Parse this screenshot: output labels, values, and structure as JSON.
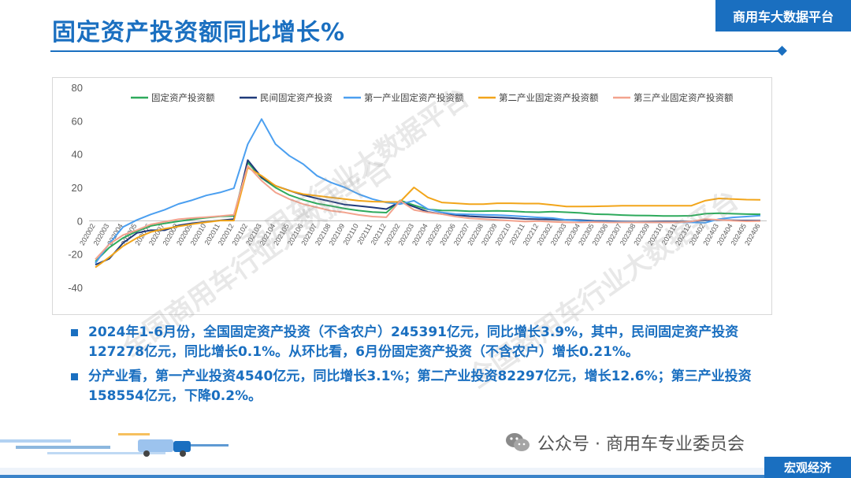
{
  "header": {
    "title": "固定资产投资额同比增长%",
    "badge": "商用车大数据平台"
  },
  "bullets": [
    "2024年1-6月份，全国固定资产投资（不含农户）245391亿元，同比增长3.9%，其中，民间固定资产投资127278亿元，同比增长0.1%。从环比看，6月份固定资产投资（不含农户）增长0.21%。",
    "分产业看，第一产业投资4540亿元，同比增长3.1%；第二产业投资82297亿元，增长12.6%；第三产业投资158554亿元，下降0.2%。"
  ],
  "footer": {
    "wechat_label": "公众号 · 商用车专业委员会",
    "section": "宏观经济"
  },
  "watermarks": [
    "商用车行业大数据平台",
    "全国商用车行业大数据平台",
    "全国商用车行业大数据平台"
  ],
  "colors": {
    "brand": "#1a6fc0"
  },
  "chart_data": {
    "type": "line",
    "title": "",
    "xlabel": "",
    "ylabel": "",
    "ylim": [
      -40,
      80
    ],
    "yticks": [
      -40,
      -20,
      0,
      20,
      40,
      60,
      80
    ],
    "grid": false,
    "legend": "top",
    "x": [
      "202002",
      "202003",
      "202004",
      "202005",
      "202006",
      "202007",
      "202008",
      "202009",
      "202010",
      "202011",
      "202012",
      "202102",
      "202103",
      "202104",
      "202105",
      "202106",
      "202107",
      "202108",
      "202109",
      "202110",
      "202111",
      "202112",
      "202202",
      "202203",
      "202204",
      "202205",
      "202206",
      "202207",
      "202208",
      "202209",
      "202210",
      "202211",
      "202212",
      "202302",
      "202303",
      "202304",
      "202305",
      "202306",
      "202307",
      "202308",
      "202309",
      "202310",
      "202311",
      "202312",
      "202402",
      "202403",
      "202404",
      "202405",
      "202406"
    ],
    "series": [
      {
        "name": "固定资产投资额",
        "color": "#2eaa5c",
        "values": [
          -24.5,
          -16.1,
          -10.3,
          -6.3,
          -3.1,
          -1.6,
          -0.3,
          0.8,
          1.8,
          2.6,
          2.9,
          35.0,
          25.6,
          19.9,
          15.4,
          12.6,
          10.3,
          8.9,
          7.3,
          6.1,
          5.2,
          4.9,
          12.2,
          9.3,
          6.8,
          6.2,
          6.1,
          5.7,
          5.8,
          5.9,
          5.8,
          5.3,
          5.1,
          5.5,
          5.1,
          4.7,
          4.0,
          3.8,
          3.4,
          3.2,
          3.1,
          2.9,
          2.9,
          3.0,
          4.2,
          4.5,
          4.2,
          4.0,
          3.9
        ]
      },
      {
        "name": "民间固定资产投资",
        "color": "#1f3a7a",
        "values": [
          -26.4,
          -22.8,
          -13.3,
          -7.3,
          -5.7,
          -5.7,
          -2.8,
          -1.5,
          -0.7,
          0.2,
          1.0,
          36.4,
          26.0,
          21.0,
          18.1,
          15.4,
          13.4,
          11.6,
          9.7,
          8.9,
          8.0,
          7.0,
          11.4,
          8.4,
          5.3,
          4.1,
          3.5,
          2.7,
          2.3,
          2.0,
          1.6,
          1.1,
          0.9,
          0.8,
          0.6,
          0.4,
          -0.1,
          -0.2,
          -0.5,
          -0.7,
          -0.6,
          -0.5,
          -0.5,
          -0.4,
          0.4,
          0.5,
          0.3,
          0.1,
          0.1
        ]
      },
      {
        "name": "第一产业固定资产投资额",
        "color": "#4b9ff0",
        "values": [
          -25.6,
          -13.8,
          -3.7,
          0.5,
          3.8,
          6.6,
          10.1,
          12.4,
          15.2,
          17.0,
          19.5,
          45.9,
          61.0,
          46.0,
          39.0,
          34.0,
          27.0,
          23.0,
          20.0,
          16.0,
          13.0,
          11.0,
          10.0,
          12.0,
          7.0,
          5.0,
          4.0,
          3.8,
          3.6,
          3.4,
          3.0,
          2.5,
          2.0,
          1.6,
          0.5,
          -0.1,
          -0.5,
          -0.6,
          -0.7,
          -0.8,
          -0.9,
          -0.9,
          -0.9,
          -1.0,
          -1.2,
          1.0,
          2.0,
          2.5,
          3.1
        ]
      },
      {
        "name": "第二产业固定资产投资额",
        "color": "#f2a51a",
        "values": [
          -28.0,
          -21.9,
          -15.2,
          -10.3,
          -6.8,
          -4.8,
          -3.4,
          -2.0,
          -0.9,
          0.1,
          0.1,
          31.9,
          27.0,
          21.0,
          18.0,
          16.0,
          15.0,
          14.0,
          13.0,
          12.0,
          11.5,
          11.3,
          11.4,
          20.0,
          14.0,
          11.0,
          10.5,
          10.0,
          10.0,
          10.5,
          10.5,
          10.3,
          10.3,
          9.5,
          8.5,
          8.5,
          8.6,
          8.8,
          9.0,
          9.0,
          9.0,
          9.0,
          9.0,
          9.0,
          12.0,
          13.4,
          13.0,
          12.7,
          12.6
        ]
      },
      {
        "name": "第三产业固定资产投资额",
        "color": "#f3a38e",
        "values": [
          -23.2,
          -14.1,
          -8.6,
          -5.6,
          -2.2,
          -0.6,
          0.9,
          1.6,
          2.2,
          2.8,
          3.6,
          33.0,
          24.0,
          17.0,
          13.0,
          10.0,
          8.0,
          6.0,
          5.0,
          3.5,
          2.5,
          2.1,
          12.0,
          6.5,
          5.0,
          4.0,
          2.5,
          1.5,
          1.0,
          0.5,
          0.0,
          -0.5,
          -0.2,
          -0.7,
          -1.0,
          -1.0,
          -0.8,
          -1.0,
          -1.0,
          -1.0,
          -1.0,
          -1.0,
          -1.0,
          -0.5,
          1.0,
          0.6,
          0.0,
          -0.3,
          -0.2
        ]
      }
    ]
  }
}
